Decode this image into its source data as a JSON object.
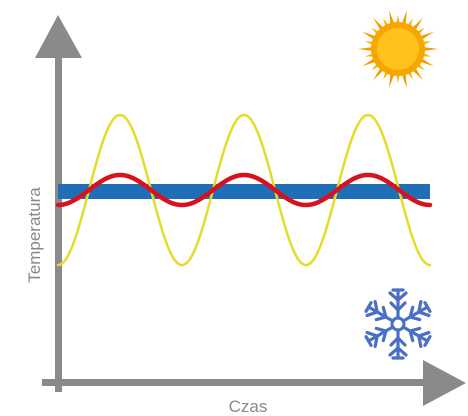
{
  "diagram": {
    "x_axis_label": "Czas",
    "y_axis_label": "Temperatura",
    "icons": {
      "hot": "sun-icon",
      "cold": "snowflake-icon"
    },
    "colors": {
      "axis": "#8a8a8a",
      "outdoor_wave": "#e4dc2a",
      "indoor_wave": "#d7121f",
      "setpoint_band": "#1f6fb8",
      "sun_core": "#f7a600",
      "sun_rays": "#f59a00",
      "snowflake": "#4a6fc4"
    },
    "series": [
      {
        "id": "outdoor",
        "amplitude": 1.0,
        "cycles": 3
      },
      {
        "id": "indoor",
        "amplitude": 0.2,
        "cycles": 3
      }
    ]
  }
}
